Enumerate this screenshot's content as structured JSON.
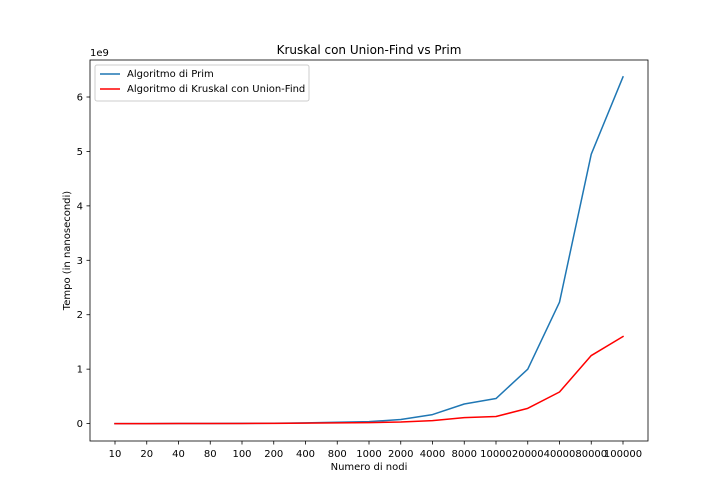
{
  "chart_data": {
    "type": "line",
    "title": "Kruskal con Union-Find vs Prim",
    "xlabel": "Numero di nodi",
    "ylabel": "Tempo (in nanosecondi)",
    "y_offset_label": "1e9",
    "categories": [
      "10",
      "20",
      "40",
      "80",
      "100",
      "200",
      "400",
      "800",
      "1000",
      "2000",
      "4000",
      "8000",
      "10000",
      "20000",
      "40000",
      "80000",
      "100000"
    ],
    "y_ticks": [
      0,
      1,
      2,
      3,
      4,
      5,
      6
    ],
    "y_tick_labels": [
      "0",
      "1",
      "2",
      "3",
      "4",
      "5",
      "6"
    ],
    "ylim": [
      -0.32,
      6.68
    ],
    "legend_position": "upper-left",
    "series": [
      {
        "name": "Algoritmo di Prim",
        "color": "#1f77b4",
        "values": [
          0.0,
          0.0,
          0.001,
          0.002,
          0.003,
          0.006,
          0.012,
          0.025,
          0.035,
          0.075,
          0.165,
          0.36,
          0.46,
          1.0,
          2.23,
          4.95,
          6.37
        ]
      },
      {
        "name": "Algoritmo di Kruskal con Union-Find",
        "color": "#ff0000",
        "values": [
          0.0,
          0.0,
          0.001,
          0.002,
          0.002,
          0.004,
          0.008,
          0.014,
          0.018,
          0.03,
          0.055,
          0.11,
          0.13,
          0.28,
          0.58,
          1.25,
          1.6
        ]
      }
    ]
  }
}
